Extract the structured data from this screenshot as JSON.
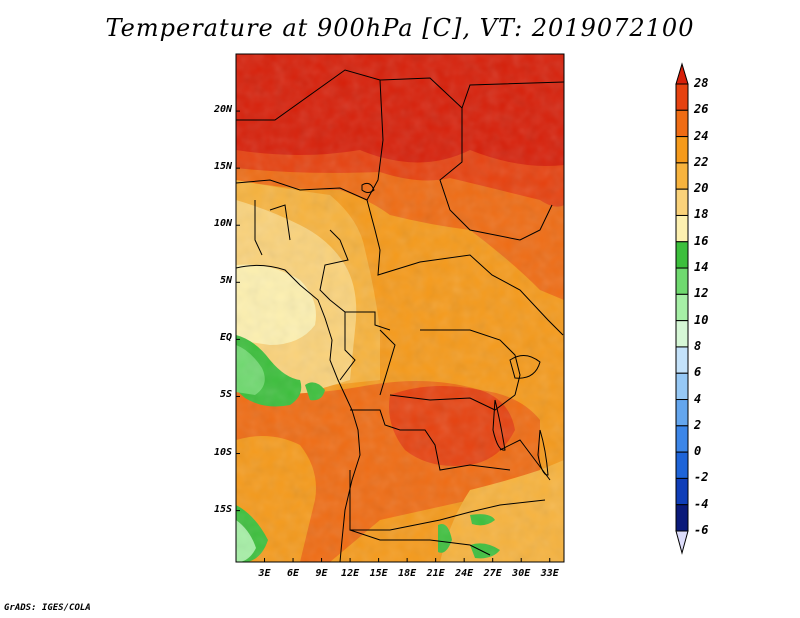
{
  "title": "Temperature at 900hPa [C], VT: 2019072100",
  "footer": "GrADS: IGES/COLA",
  "map": {
    "lat_labels": [
      "20N",
      "15N",
      "10N",
      "5N",
      "EQ",
      "5S",
      "10S",
      "15S"
    ],
    "lat_values": [
      20,
      15,
      10,
      5,
      0,
      -5,
      -10,
      -15
    ],
    "lon_labels": [
      "3E",
      "6E",
      "9E",
      "12E",
      "15E",
      "18E",
      "21E",
      "24E",
      "27E",
      "30E",
      "33E"
    ],
    "lon_values": [
      3,
      6,
      9,
      12,
      15,
      18,
      21,
      24,
      27,
      30,
      33
    ],
    "lat_range": [
      -19.5,
      25
    ],
    "lon_range": [
      0,
      34.5
    ]
  },
  "colorbar": {
    "labels": [
      "28",
      "26",
      "24",
      "22",
      "20",
      "18",
      "16",
      "14",
      "12",
      "10",
      "8",
      "6",
      "4",
      "2",
      "0",
      "-2",
      "-4",
      "-6"
    ],
    "colors": [
      "#d7200a",
      "#e64210",
      "#ef6c14",
      "#f59a1b",
      "#f7b33e",
      "#fad27a",
      "#fdf0b0",
      "#3cbf3c",
      "#6fd96f",
      "#a6efa6",
      "#d6f7d6",
      "#c4e2fa",
      "#96c8f5",
      "#64a6ee",
      "#3c86e8",
      "#1e64d8",
      "#0f3eb8",
      "#0a1a7a"
    ]
  },
  "colors": {
    "hot": "#d7200a",
    "warm": "#ef6c14",
    "orange": "#f59a1b",
    "light_orange": "#f7b33e",
    "yellow": "#fad27a",
    "cream": "#fdf0b0",
    "green": "#3cbf3c",
    "light_green": "#6fd96f"
  }
}
